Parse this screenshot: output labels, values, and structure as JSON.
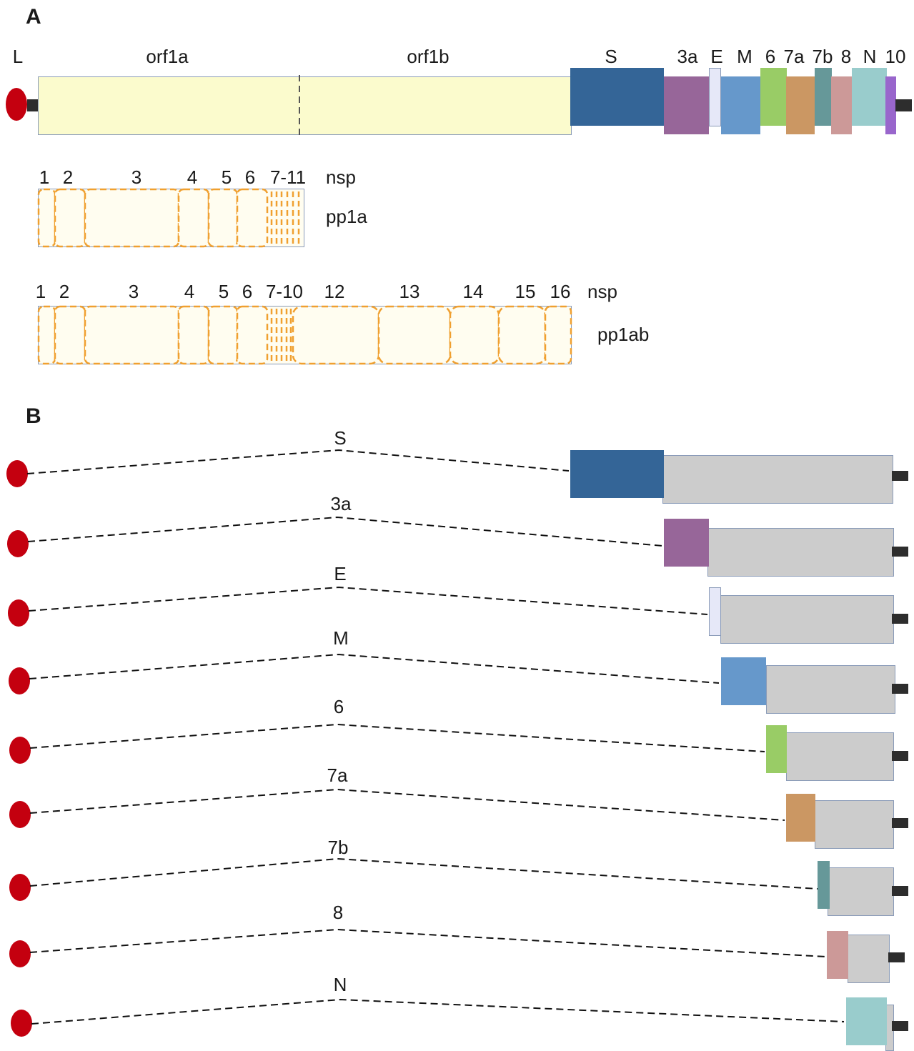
{
  "panel_a": {
    "letter": "A",
    "genome_labels": {
      "leader": "L",
      "orf1a": "orf1a",
      "orf1b": "orf1b",
      "s": "S",
      "orf3a": "3a",
      "e": "E",
      "m": "M",
      "orf6": "6",
      "orf7a": "7a",
      "orf7b": "7b",
      "orf8": "8",
      "n": "N",
      "orf10": "10"
    },
    "pp1a": {
      "name": "pp1a",
      "nsp_tag": "nsp",
      "nsp_labels": [
        "1",
        "2",
        "3",
        "4",
        "5",
        "6",
        "7-11"
      ]
    },
    "pp1ab": {
      "name": "pp1ab",
      "nsp_tag": "nsp",
      "nsp_labels": [
        "1",
        "2",
        "3",
        "4",
        "5",
        "6",
        "7-10",
        "12",
        "13",
        "14",
        "15",
        "16"
      ]
    }
  },
  "panel_b": {
    "letter": "B",
    "sgrna_labels": [
      "S",
      "3a",
      "E",
      "M",
      "6",
      "7a",
      "7b",
      "8",
      "N"
    ]
  },
  "colors": {
    "leader_cap": "#c4000f",
    "orf1ab_fill": "#fbfbcd",
    "nsp_border": "#f0a030",
    "nsp_fill": "#fffdf0",
    "spike": "#346597",
    "orf3a": "#976699",
    "envelope": "#e6e8f8",
    "membrane": "#6698cb",
    "orf6": "#99cc66",
    "orf7a": "#cb9763",
    "orf7b": "#669899",
    "orf8": "#cc9998",
    "nucleocapsid": "#99cccc",
    "orf10": "#9966cc",
    "subgenomic_body": "#cccccc",
    "polyA_tail": "#2d2d2d"
  }
}
